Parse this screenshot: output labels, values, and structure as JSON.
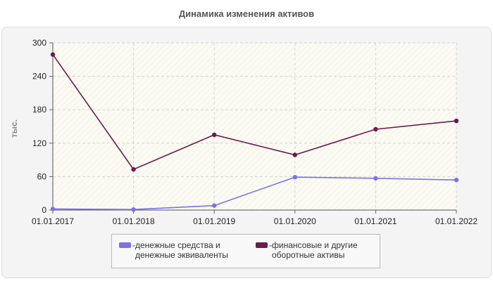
{
  "chart_data": {
    "type": "line",
    "title": "Динамика изменения активов",
    "xlabel": "",
    "ylabel": "тыс.",
    "categories": [
      "01.01.2017",
      "01.01.2018",
      "01.01.2019",
      "01.01.2020",
      "01.01.2021",
      "01.01.2022"
    ],
    "ylim": [
      0,
      300
    ],
    "yticks": [
      "0",
      "60",
      "120",
      "180",
      "240",
      "300"
    ],
    "grid": true,
    "legend_position": "bottom",
    "series": [
      {
        "name": "денежные средства и\nденежные эквиваленты",
        "color": "#7b72e6",
        "values": [
          2,
          1,
          8,
          59,
          57,
          54
        ]
      },
      {
        "name": "финансовые и другие\nоборотные активы",
        "color": "#6e1a4a",
        "values": [
          279,
          73,
          135,
          99,
          145,
          160
        ]
      }
    ]
  },
  "legend": {
    "prefix": "-"
  }
}
